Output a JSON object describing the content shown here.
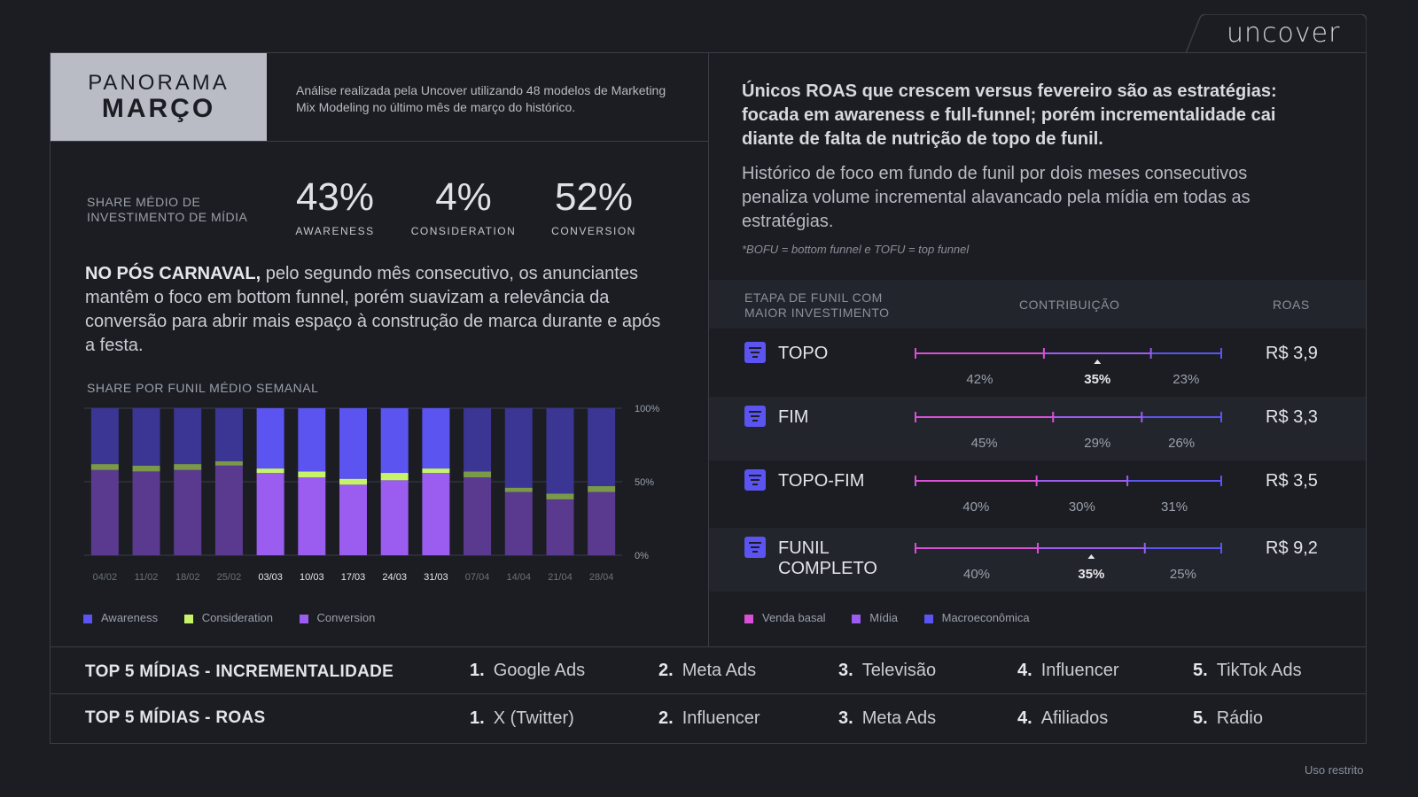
{
  "brand": "uncover",
  "header": {
    "title_line1": "PANORAMA",
    "title_line2": "MARÇO",
    "intro": "Análise realizada pela Uncover utilizando 48 modelos de Marketing Mix Modeling no último mês de março do histórico."
  },
  "share": {
    "label_line1": "SHARE MÉDIO DE",
    "label_line2": "INVESTIMENTO DE MÍDIA",
    "items": [
      {
        "value": "43%",
        "label": "AWARENESS"
      },
      {
        "value": "4%",
        "label": "CONSIDERATION"
      },
      {
        "value": "52%",
        "label": "CONVERSION"
      }
    ]
  },
  "summary": {
    "lead": "NO PÓS CARNAVAL,",
    "text": " pelo segundo mês consecutivo, os anunciantes mantêm o foco em bottom funnel, porém suavizam a relevância da conversão para abrir mais espaço à construção de marca durante e após a festa."
  },
  "chart_data": {
    "type": "bar",
    "stacked": true,
    "title": "SHARE POR FUNIL MÉDIO SEMANAL",
    "categories": [
      "04/02",
      "11/02",
      "18/02",
      "25/02",
      "03/03",
      "10/03",
      "17/03",
      "24/03",
      "31/03",
      "07/04",
      "14/04",
      "21/04",
      "28/04"
    ],
    "highlighted": [
      "03/03",
      "10/03",
      "17/03",
      "24/03",
      "31/03"
    ],
    "series": [
      {
        "name": "Conversion",
        "values": [
          58,
          57,
          58,
          61,
          56,
          53,
          48,
          51,
          56,
          53,
          43,
          38,
          43
        ]
      },
      {
        "name": "Consideration",
        "values": [
          4,
          4,
          4,
          3,
          3,
          4,
          4,
          5,
          3,
          4,
          3,
          4,
          4
        ]
      },
      {
        "name": "Awareness",
        "values": [
          38,
          39,
          38,
          36,
          41,
          43,
          48,
          44,
          41,
          43,
          54,
          58,
          53
        ]
      }
    ],
    "y_ticks": [
      "100%",
      "50%",
      "0%"
    ],
    "ylim": [
      0,
      100
    ],
    "legend": [
      "Awareness",
      "Consideration",
      "Conversion"
    ],
    "colors": {
      "Awareness": "#3b3594",
      "Consideration": "#7a9a4a",
      "Conversion": "#5a3a8e",
      "Awareness_hl": "#5b54f0",
      "Consideration_hl": "#c6f36a",
      "Conversion_hl": "#9b5cf0"
    }
  },
  "right": {
    "headline": "Únicos ROAS que crescem versus fevereiro são as estratégias: focada em awareness e full-funnel; porém incrementalidade cai diante de falta de nutrição de topo de funil.",
    "paragraph": "Histórico de foco em fundo de funil por dois meses consecutivos penaliza volume incremental alavancado pela mídia em todas as estratégias.",
    "footnote": "*BOFU = bottom funnel e TOFU = top funnel"
  },
  "table": {
    "col1_line1": "ETAPA DE FUNIL COM",
    "col1_line2": "MAIOR INVESTIMENTO",
    "col2": "CONTRIBUIÇÃO",
    "col3": "ROAS",
    "rows": [
      {
        "name_line1": "TOPO",
        "name_line2": "",
        "roas": "R$ 3,9",
        "splits": [
          42,
          35,
          23
        ],
        "labels": [
          "42%",
          "35%",
          "23%"
        ],
        "highlight": 1
      },
      {
        "name_line1": "FIM",
        "name_line2": "",
        "roas": "R$ 3,3",
        "splits": [
          45,
          29,
          26
        ],
        "labels": [
          "45%",
          "29%",
          "26%"
        ],
        "highlight": -1
      },
      {
        "name_line1": "TOPO-FIM",
        "name_line2": "",
        "roas": "R$ 3,5",
        "splits": [
          40,
          30,
          31
        ],
        "labels": [
          "40%",
          "30%",
          "31%"
        ],
        "highlight": -1
      },
      {
        "name_line1": "FUNIL",
        "name_line2": "COMPLETO",
        "roas": "R$ 9,2",
        "splits": [
          40,
          35,
          25
        ],
        "labels": [
          "40%",
          "35%",
          "25%"
        ],
        "highlight": 1
      }
    ],
    "legend": [
      "Venda basal",
      "Mídia",
      "Macroeconômica"
    ],
    "colors": {
      "basal": "#d94fd6",
      "midia": "#9b5cf0",
      "macro": "#5b54f0"
    }
  },
  "top5": {
    "incremental_title": "TOP 5 MÍDIAS - INCREMENTALIDADE",
    "incremental": [
      {
        "n": "1.",
        "name": "Google Ads"
      },
      {
        "n": "2.",
        "name": "Meta Ads"
      },
      {
        "n": "3.",
        "name": "Televisão"
      },
      {
        "n": "4.",
        "name": "Influencer"
      },
      {
        "n": "5.",
        "name": "TikTok Ads"
      }
    ],
    "roas_title": "TOP 5 MÍDIAS - ROAS",
    "roas": [
      {
        "n": "1.",
        "name": "X (Twitter)"
      },
      {
        "n": "2.",
        "name": "Influencer"
      },
      {
        "n": "3.",
        "name": "Meta Ads"
      },
      {
        "n": "4.",
        "name": "Afiliados"
      },
      {
        "n": "5.",
        "name": "Rádio"
      }
    ]
  },
  "footer": {
    "restricted": "Uso restrito"
  }
}
